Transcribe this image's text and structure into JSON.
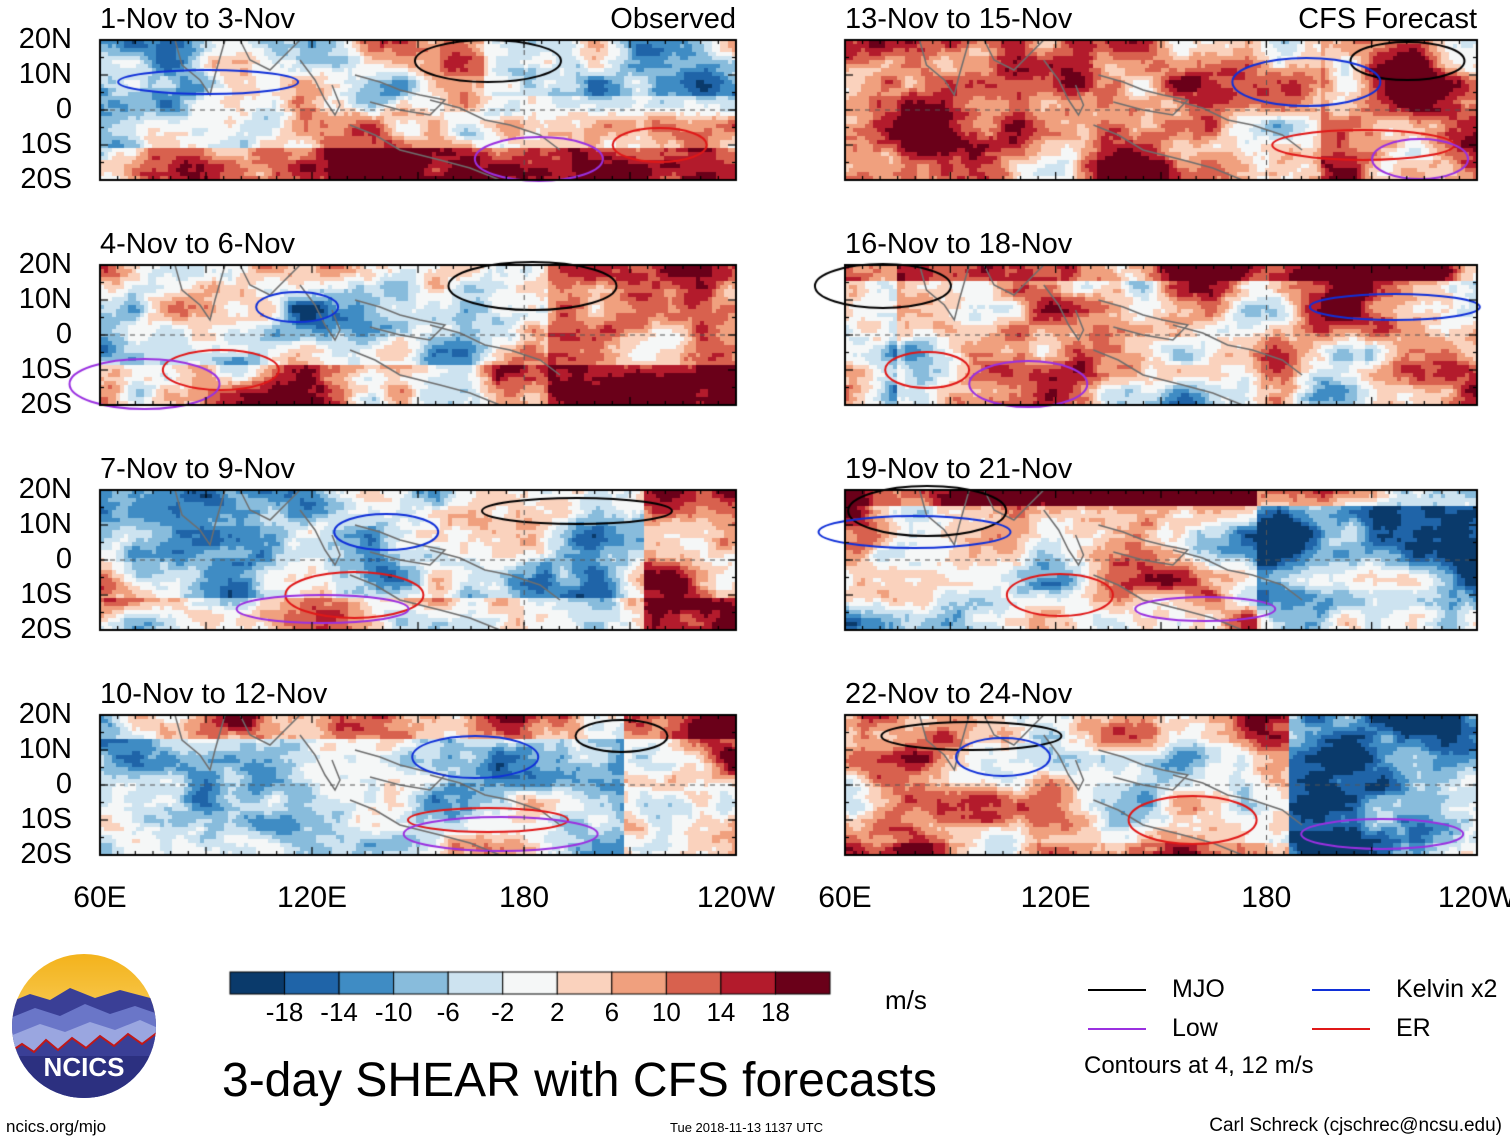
{
  "figure": {
    "main_title": "3-day SHEAR with CFS forecasts",
    "site": "ncics.org/mjo",
    "timestamp": "Tue 2018-11-13 1137 UTC",
    "author": "Carl Schreck (cjschrec@ncsu.edu)",
    "logo_text": "NCICS"
  },
  "columns": {
    "left_label": "Observed",
    "right_label": "CFS Forecast"
  },
  "axes": {
    "y_ticks": [
      "20N",
      "10N",
      "0",
      "10S",
      "20S"
    ],
    "x_ticks": [
      "60E",
      "120E",
      "180",
      "120W"
    ]
  },
  "panels": [
    {
      "title": "1-Nov to 3-Nov",
      "type": "observed"
    },
    {
      "title": "4-Nov to 6-Nov",
      "type": "observed"
    },
    {
      "title": "7-Nov to 9-Nov",
      "type": "observed"
    },
    {
      "title": "10-Nov to 12-Nov",
      "type": "observed"
    },
    {
      "title": "13-Nov to 15-Nov",
      "type": "forecast"
    },
    {
      "title": "16-Nov to 18-Nov",
      "type": "forecast"
    },
    {
      "title": "19-Nov to 21-Nov",
      "type": "forecast"
    },
    {
      "title": "22-Nov to 24-Nov",
      "type": "forecast"
    }
  ],
  "colorbar": {
    "units": "m/s",
    "ticks": [
      "-18",
      "-14",
      "-10",
      "-6",
      "-2",
      "2",
      "6",
      "10",
      "14",
      "18"
    ],
    "colors": [
      "#0a3a6b",
      "#1f64a8",
      "#3f8cc4",
      "#88bcdc",
      "#cde3f0",
      "#f5f7f7",
      "#fad2bd",
      "#f0a07e",
      "#d8614e",
      "#b31b2c",
      "#6a0019"
    ]
  },
  "legend": {
    "items": [
      {
        "label": "MJO",
        "color": "#000000"
      },
      {
        "label": "Kelvin x2",
        "color": "#1030d8"
      },
      {
        "label": "Low",
        "color": "#9a30e0"
      },
      {
        "label": "ER",
        "color": "#e01818"
      }
    ],
    "note": "Contours at 4, 12 m/s"
  }
}
